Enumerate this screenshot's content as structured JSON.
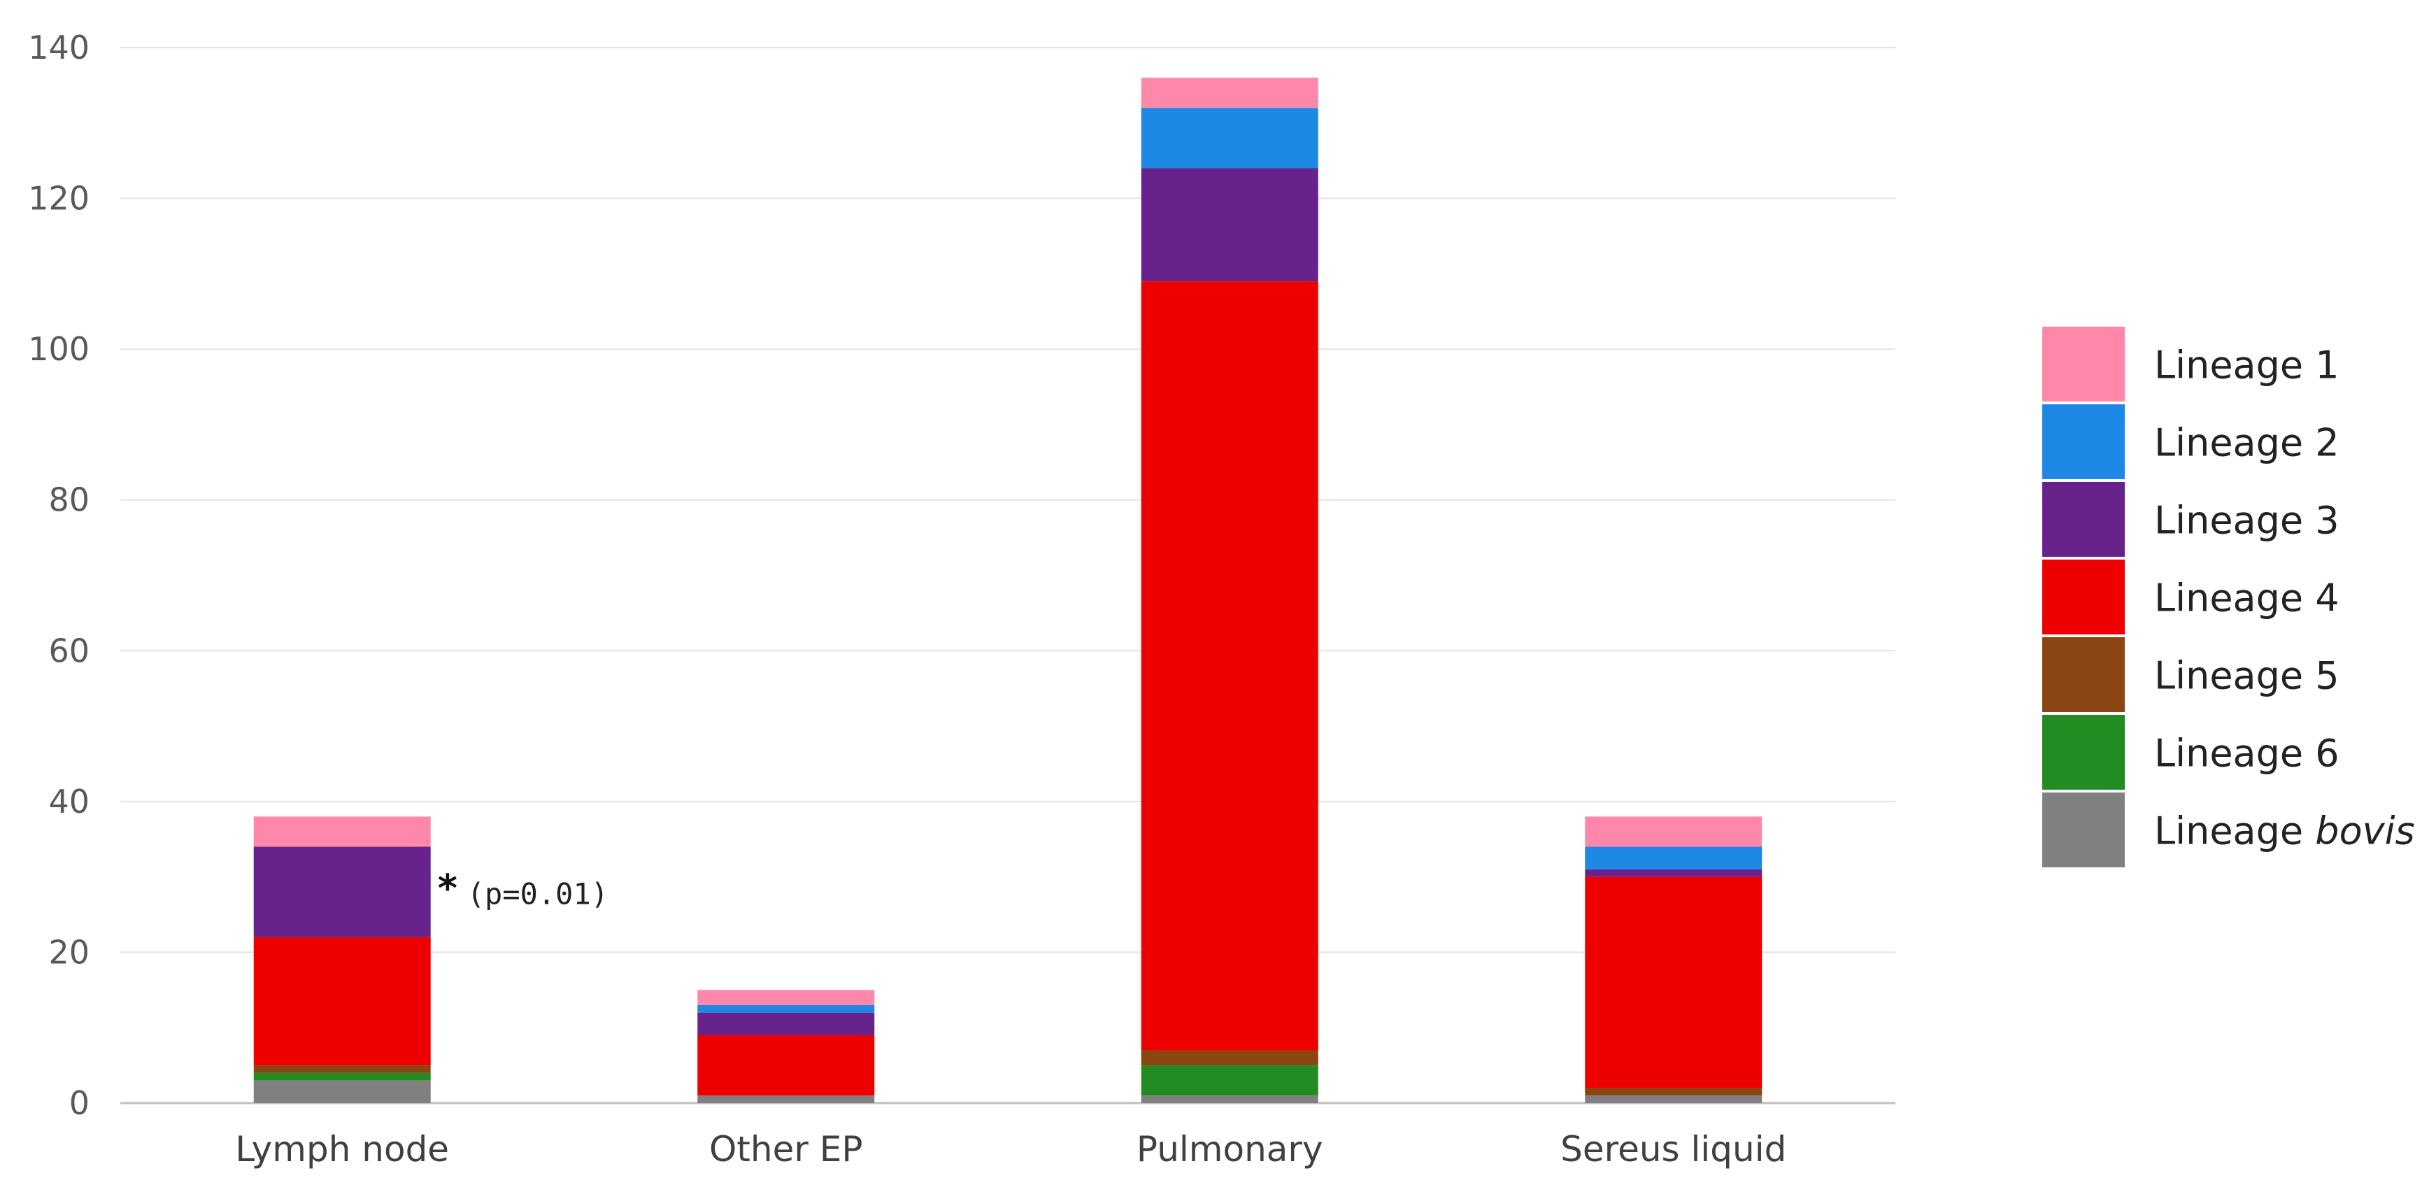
{
  "chart_data": {
    "type": "bar",
    "stacked": true,
    "title": "",
    "xlabel": "",
    "ylabel": "",
    "ylim": [
      0,
      140
    ],
    "yticks": [
      0,
      20,
      40,
      60,
      80,
      100,
      120,
      140
    ],
    "grid": true,
    "legend_position": "right",
    "categories": [
      "Lymph node",
      "Other EP",
      "Pulmonary",
      "Sereus liquid"
    ],
    "series": [
      {
        "name": "Lineage bovis",
        "name_prefix": "Lineage ",
        "name_italic": "bovis",
        "color": "#808080",
        "values": [
          3,
          1,
          1,
          1
        ]
      },
      {
        "name": "Lineage 6",
        "color": "#228B22",
        "values": [
          1,
          0,
          4,
          0
        ]
      },
      {
        "name": "Lineage 5",
        "color": "#8B4513",
        "values": [
          1,
          0,
          2,
          1
        ]
      },
      {
        "name": "Lineage 4",
        "color": "#EE0000",
        "values": [
          17,
          8,
          102,
          28
        ]
      },
      {
        "name": "Lineage 3",
        "color": "#68228B",
        "values": [
          12,
          3,
          15,
          1
        ]
      },
      {
        "name": "Lineage 2",
        "color": "#1E88E5",
        "values": [
          0,
          1,
          8,
          3
        ]
      },
      {
        "name": "Lineage 1",
        "color": "#FF88AA",
        "values": [
          4,
          2,
          4,
          4
        ]
      }
    ],
    "legend_order": [
      "Lineage 1",
      "Lineage 2",
      "Lineage 3",
      "Lineage 4",
      "Lineage 5",
      "Lineage 6",
      "Lineage bovis"
    ],
    "annotations": [
      {
        "category": "Lymph node",
        "series": "Lineage 3",
        "marker": "*",
        "text": "(p=0.01)"
      }
    ]
  }
}
